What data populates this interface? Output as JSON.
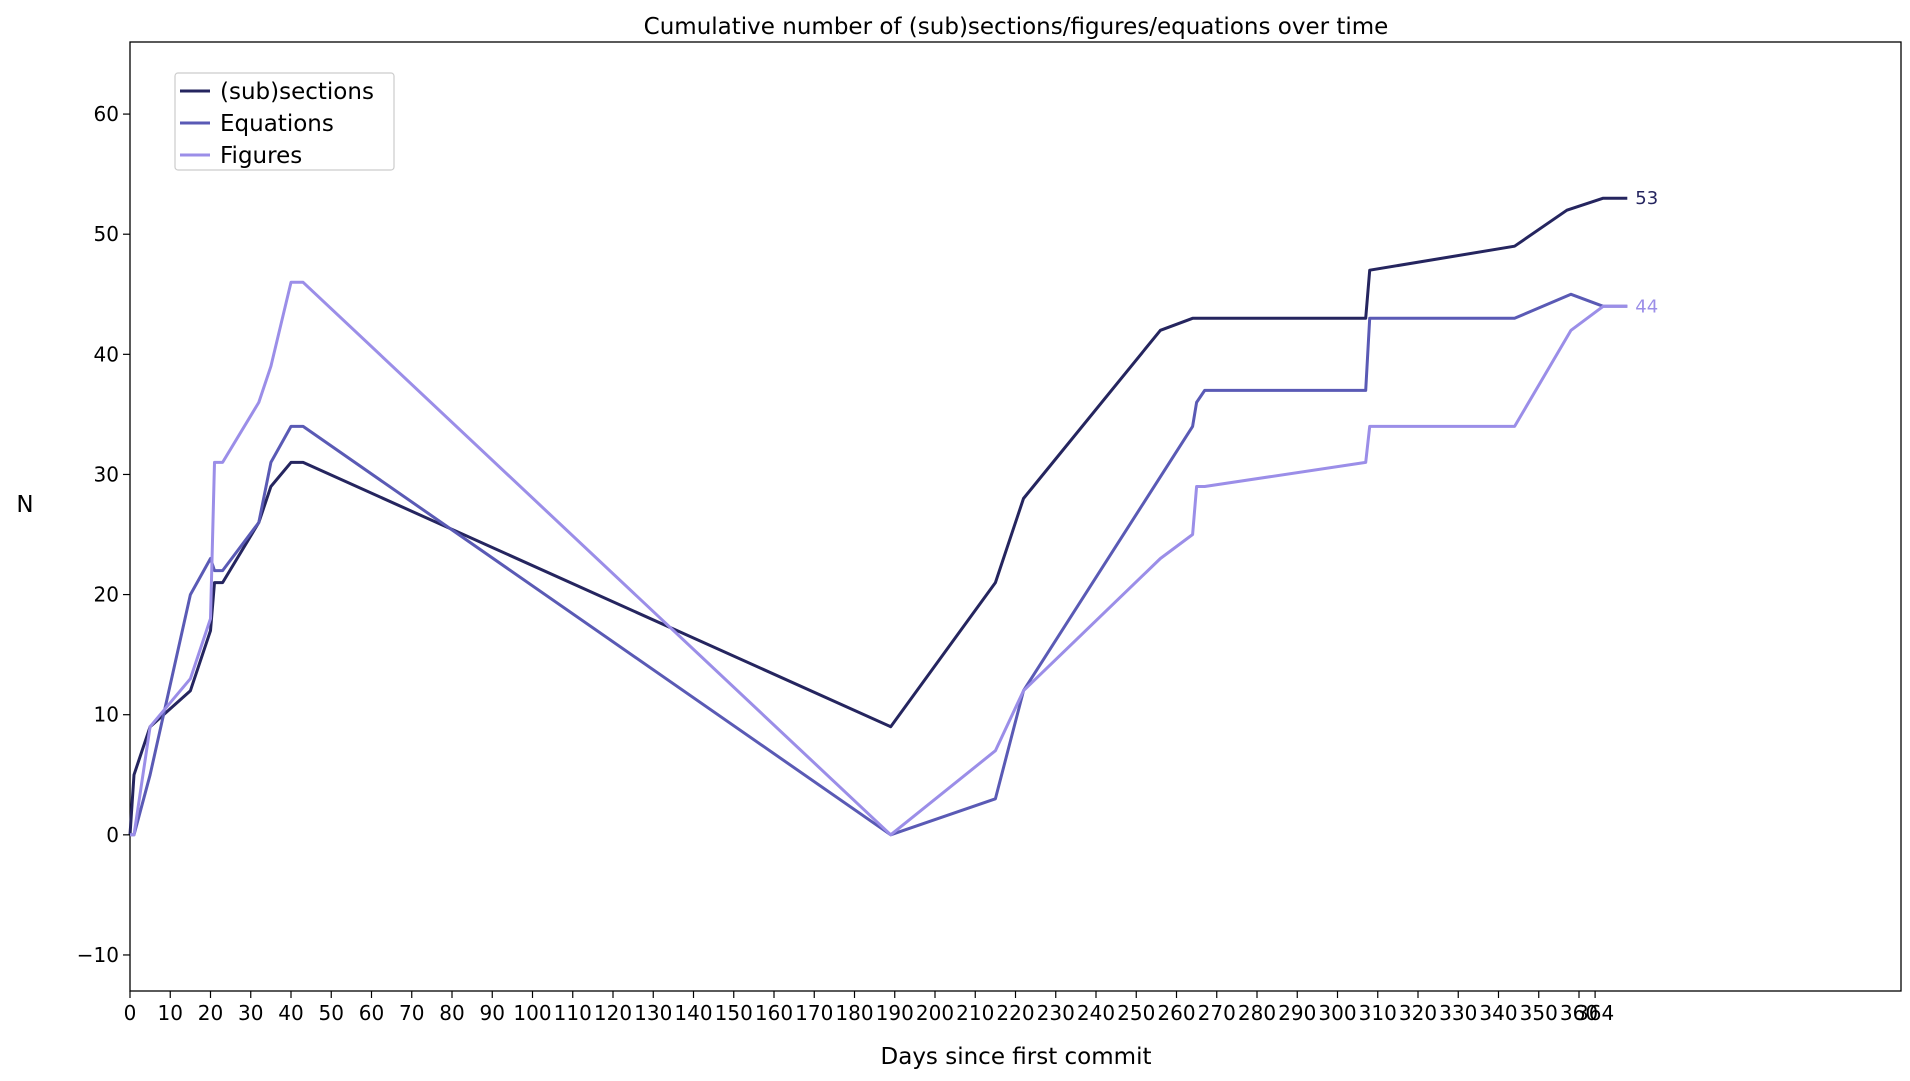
{
  "chart_data": {
    "type": "line",
    "title": "Cumulative number of (sub)sections/figures/equations over time",
    "xlabel": "Days since first commit",
    "ylabel": "N",
    "xlim": [
      0,
      440
    ],
    "ylim": [
      -13,
      66
    ],
    "x_ticks": [
      0,
      10,
      20,
      30,
      40,
      50,
      60,
      70,
      80,
      90,
      100,
      110,
      120,
      130,
      140,
      150,
      160,
      170,
      180,
      190,
      200,
      210,
      220,
      230,
      240,
      250,
      260,
      270,
      280,
      290,
      300,
      310,
      320,
      330,
      340,
      350,
      360,
      364
    ],
    "x_tick_labels": [
      "0",
      "10",
      "20",
      "30",
      "40",
      "50",
      "60",
      "70",
      "80",
      "90",
      "100",
      "110",
      "120",
      "130",
      "140",
      "150",
      "160",
      "170",
      "180",
      "190",
      "200",
      "210",
      "220",
      "230",
      "240",
      "250",
      "260",
      "270",
      "280",
      "290",
      "300",
      "310",
      "320",
      "330",
      "340",
      "350",
      "360",
      "364"
    ],
    "y_ticks": [
      -10,
      0,
      10,
      20,
      30,
      40,
      50,
      60
    ],
    "y_tick_labels": [
      "−10",
      "0",
      "10",
      "20",
      "30",
      "40",
      "50",
      "60"
    ],
    "grid": false,
    "legend_position": "top-left",
    "series": [
      {
        "name": "(sub)sections",
        "color": "#25255f",
        "points": [
          [
            0,
            0
          ],
          [
            1,
            5
          ],
          [
            5,
            9
          ],
          [
            15,
            12
          ],
          [
            20,
            17
          ],
          [
            21,
            21
          ],
          [
            23,
            21
          ],
          [
            32,
            26
          ],
          [
            35,
            29
          ],
          [
            40,
            31
          ],
          [
            43,
            31
          ],
          [
            189,
            9
          ],
          [
            215,
            21
          ],
          [
            222,
            28
          ],
          [
            256,
            42
          ],
          [
            264,
            43
          ],
          [
            307,
            43
          ],
          [
            308,
            47
          ],
          [
            344,
            49
          ],
          [
            357,
            52
          ],
          [
            366,
            53
          ],
          [
            372,
            53
          ]
        ],
        "end_label": "53"
      },
      {
        "name": "Equations",
        "color": "#5a5ab5",
        "points": [
          [
            0,
            0
          ],
          [
            1,
            0
          ],
          [
            5,
            5
          ],
          [
            15,
            20
          ],
          [
            20,
            23
          ],
          [
            21,
            22
          ],
          [
            23,
            22
          ],
          [
            32,
            26
          ],
          [
            35,
            31
          ],
          [
            40,
            34
          ],
          [
            43,
            34
          ],
          [
            189,
            0
          ],
          [
            215,
            3
          ],
          [
            222,
            12
          ],
          [
            264,
            34
          ],
          [
            265,
            36
          ],
          [
            267,
            37
          ],
          [
            307,
            37
          ],
          [
            308,
            43
          ],
          [
            344,
            43
          ],
          [
            358,
            45
          ],
          [
            366,
            44
          ],
          [
            372,
            44
          ]
        ],
        "end_label": ""
      },
      {
        "name": "Figures",
        "color": "#9b8ee8",
        "points": [
          [
            0,
            0
          ],
          [
            1,
            0
          ],
          [
            5,
            9
          ],
          [
            15,
            13
          ],
          [
            20,
            18
          ],
          [
            21,
            31
          ],
          [
            23,
            31
          ],
          [
            32,
            36
          ],
          [
            35,
            39
          ],
          [
            40,
            46
          ],
          [
            43,
            46
          ],
          [
            189,
            0
          ],
          [
            215,
            7
          ],
          [
            222,
            12
          ],
          [
            256,
            23
          ],
          [
            264,
            25
          ],
          [
            265,
            29
          ],
          [
            267,
            29
          ],
          [
            307,
            31
          ],
          [
            308,
            34
          ],
          [
            344,
            34
          ],
          [
            358,
            42
          ],
          [
            366,
            44
          ],
          [
            372,
            44
          ]
        ],
        "end_label": "44"
      }
    ]
  }
}
